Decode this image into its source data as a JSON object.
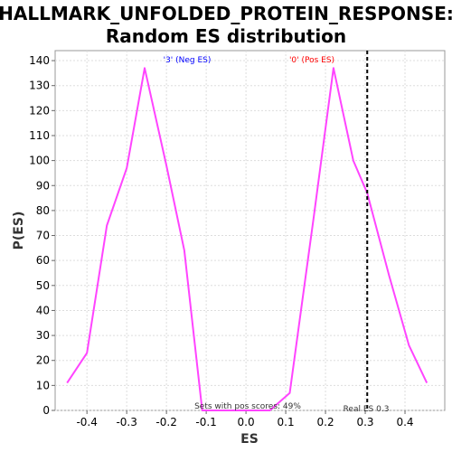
{
  "chart_data": {
    "type": "line",
    "title_line1": "HALLMARK_UNFOLDED_PROTEIN_RESPONSE:",
    "title_line2": "Random ES distribution",
    "xlabel": "ES",
    "ylabel": "P(ES)",
    "xlim": [
      -0.48,
      0.5
    ],
    "ylim": [
      0,
      144
    ],
    "x_ticks": [
      -0.4,
      -0.3,
      -0.2,
      -0.1,
      0.0,
      0.1,
      0.2,
      0.3,
      0.4
    ],
    "x_tick_labels": [
      "-0.4",
      "-0.3",
      "-0.2",
      "-0.1",
      "0.0",
      "0.1",
      "0.2",
      "0.3",
      "0.4"
    ],
    "y_ticks": [
      0,
      10,
      20,
      30,
      40,
      50,
      60,
      70,
      80,
      90,
      100,
      110,
      120,
      130,
      140
    ],
    "y_tick_labels": [
      "0",
      "10",
      "20",
      "30",
      "40",
      "50",
      "60",
      "70",
      "80",
      "90",
      "100",
      "110",
      "120",
      "130",
      "140"
    ],
    "grid": true,
    "series": [
      {
        "color": "#ff44ff",
        "x": [
          -0.45,
          -0.4,
          -0.35,
          -0.3,
          -0.255,
          -0.2,
          -0.155,
          -0.11,
          -0.06,
          0.0,
          0.06,
          0.11,
          0.17,
          0.22,
          0.27,
          0.305,
          0.36,
          0.41,
          0.455
        ],
        "y": [
          11,
          23,
          74,
          97,
          137,
          98,
          64,
          0,
          0,
          0,
          0,
          7,
          77,
          137,
          100,
          87,
          54,
          26,
          11
        ]
      }
    ],
    "vline": {
      "x": 0.305,
      "label": "Real ES 0.3",
      "color": "#000000"
    },
    "annotations": {
      "neg_label": "'3' (Neg ES)",
      "neg_color": "#0000ff",
      "pos_label": "'0' (Pos ES)",
      "pos_color": "#ff0000",
      "pos_scores": "Sets with pos scores: 49%"
    }
  }
}
